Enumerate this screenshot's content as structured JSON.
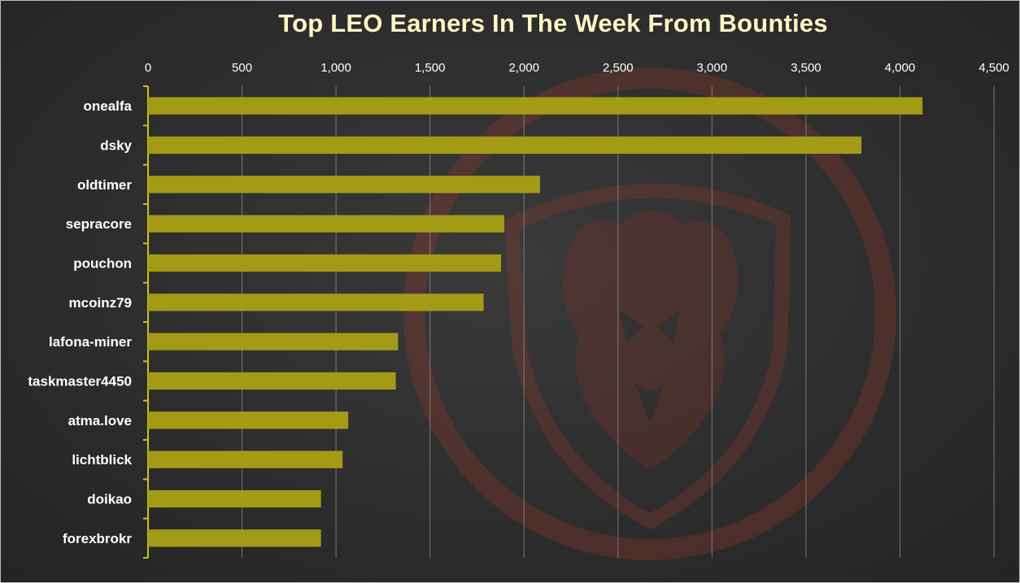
{
  "chart_data": {
    "type": "bar",
    "orientation": "horizontal",
    "title": "Top LEO Earners In The Week From Bounties",
    "xlabel": "",
    "ylabel": "",
    "xlim": [
      0,
      4500
    ],
    "ticks": [
      0,
      500,
      1000,
      1500,
      2000,
      2500,
      3000,
      3500,
      4000,
      4500
    ],
    "tick_labels": [
      "0",
      "500",
      "1,000",
      "1,500",
      "2,000",
      "2,500",
      "3,000",
      "3,500",
      "4,000",
      "4,500"
    ],
    "grid": true,
    "axis_position": "top",
    "bar_color": "#a39b16",
    "categories": [
      "onealfa",
      "dsky",
      "oldtimer",
      "sepracore",
      "pouchon",
      "mcoinz79",
      "lafona-miner",
      "taskmaster4450",
      "atma.love",
      "lichtblick",
      "doikao",
      "forexbrokr"
    ],
    "values": [
      4120,
      3795,
      2085,
      1895,
      1878,
      1785,
      1330,
      1318,
      1065,
      1035,
      920,
      920
    ]
  },
  "watermark": {
    "icon": "lion-shield-icon",
    "color": "#7a1f1f"
  }
}
